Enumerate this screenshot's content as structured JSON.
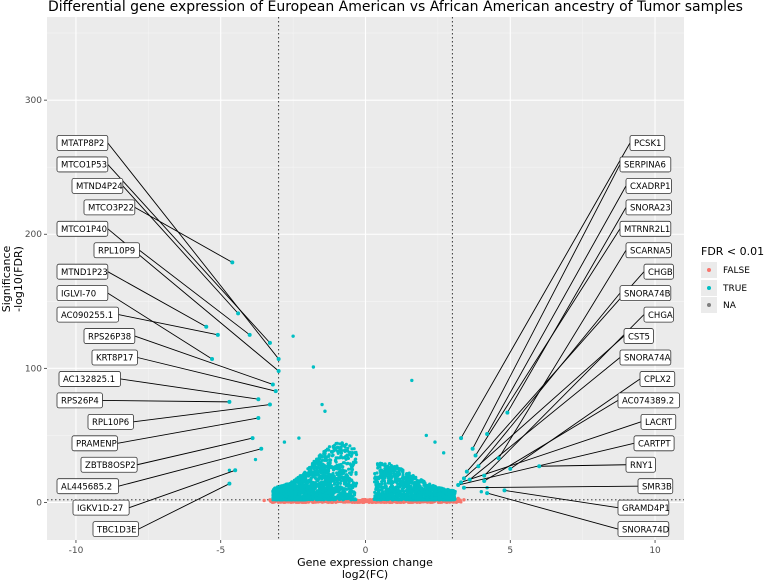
{
  "chart_data": {
    "type": "scatter",
    "title": "Differential gene expression of European American vs African American ancestry of Tumor samples",
    "xlabel": [
      "Gene expression change",
      "log2(FC)"
    ],
    "ylabel": [
      "Significance",
      "-log10(FDR)"
    ],
    "xlim": [
      -11,
      11
    ],
    "ylim": [
      -28,
      362
    ],
    "x_ticks": [
      -10,
      -5,
      0,
      5,
      10
    ],
    "y_ticks": [
      0,
      100,
      200,
      300
    ],
    "thresholds": {
      "fc_cutoffs": [
        -3,
        3
      ],
      "fdr_line": 2
    },
    "grid": true,
    "legend": {
      "title": "FDR < 0.01",
      "position": "right",
      "entries": [
        {
          "label": "FALSE",
          "color": "#f8766d"
        },
        {
          "label": "TRUE",
          "color": "#00bfc4"
        },
        {
          "label": "NA",
          "color": "#7f7f7f"
        }
      ]
    },
    "labeled_points": {
      "left": [
        {
          "label": "MTATP8P2",
          "x": -3.0,
          "y": 107
        },
        {
          "label": "MTCO1P53",
          "x": -3.3,
          "y": 119
        },
        {
          "label": "MTND4P24",
          "x": -4.4,
          "y": 141
        },
        {
          "label": "MTCO3P22",
          "x": -4.6,
          "y": 179
        },
        {
          "label": "MTCO1P40",
          "x": -3.0,
          "y": 98
        },
        {
          "label": "RPL10P9",
          "x": -4.0,
          "y": 125
        },
        {
          "label": "MTND1P23",
          "x": -5.5,
          "y": 131
        },
        {
          "label": "IGLVI-70",
          "x": -5.3,
          "y": 107
        },
        {
          "label": "AC090255.1",
          "x": -5.1,
          "y": 125
        },
        {
          "label": "RPS26P38",
          "x": -3.2,
          "y": 88
        },
        {
          "label": "KRT8P17",
          "x": -3.1,
          "y": 83
        },
        {
          "label": "AC132825.1",
          "x": -3.7,
          "y": 77
        },
        {
          "label": "RPS26P4",
          "x": -4.7,
          "y": 75
        },
        {
          "label": "RPL10P6",
          "x": -3.3,
          "y": 73
        },
        {
          "label": "PRAMENP",
          "x": -3.7,
          "y": 63
        },
        {
          "label": "ZBTB8OSP2",
          "x": -3.9,
          "y": 48
        },
        {
          "label": "AL445685.2",
          "x": -3.6,
          "y": 40
        },
        {
          "label": "IGKV1D-27",
          "x": -4.5,
          "y": 24
        },
        {
          "label": "TBC1D3E",
          "x": -4.7,
          "y": 14
        }
      ],
      "right": [
        {
          "label": "PCSK1",
          "x": 3.3,
          "y": 48
        },
        {
          "label": "SERPINA6",
          "x": 3.7,
          "y": 40
        },
        {
          "label": "CXADRP1",
          "x": 4.2,
          "y": 51
        },
        {
          "label": "SNORA23",
          "x": 4.9,
          "y": 67
        },
        {
          "label": "MTRNR2L1",
          "x": 3.8,
          "y": 35
        },
        {
          "label": "SCARNA5",
          "x": 4.6,
          "y": 33
        },
        {
          "label": "CHGB",
          "x": 3.5,
          "y": 23
        },
        {
          "label": "SNORA74B",
          "x": 3.9,
          "y": 27
        },
        {
          "label": "CHGA",
          "x": 4.1,
          "y": 20
        },
        {
          "label": "CST5",
          "x": 3.4,
          "y": 18
        },
        {
          "label": "SNORA74A",
          "x": 3.6,
          "y": 17
        },
        {
          "label": "CPLX2",
          "x": 5.0,
          "y": 25
        },
        {
          "label": "AC074389.2",
          "x": 4.1,
          "y": 16
        },
        {
          "label": "LACRT",
          "x": 3.3,
          "y": 15
        },
        {
          "label": "CARTPT",
          "x": 3.2,
          "y": 13
        },
        {
          "label": "RNY1",
          "x": 6.0,
          "y": 27
        },
        {
          "label": "SMR3B",
          "x": 3.4,
          "y": 11
        },
        {
          "label": "GRAMD4P1",
          "x": 4.8,
          "y": 9
        },
        {
          "label": "SNORA74D",
          "x": 4.2,
          "y": 7
        }
      ]
    },
    "other_points": [
      {
        "x": -2.5,
        "y": 124,
        "significant": true
      },
      {
        "x": -1.8,
        "y": 101,
        "significant": true
      },
      {
        "x": 1.6,
        "y": 91,
        "significant": true
      },
      {
        "x": -1.5,
        "y": 73,
        "significant": true
      },
      {
        "x": -1.4,
        "y": 68,
        "significant": true
      },
      {
        "x": -2.8,
        "y": 45,
        "significant": true
      },
      {
        "x": -3.6,
        "y": 40,
        "significant": true
      },
      {
        "x": -3.8,
        "y": 32,
        "significant": true
      },
      {
        "x": -4.7,
        "y": 24,
        "significant": true
      },
      {
        "x": -2.3,
        "y": 48,
        "significant": true
      },
      {
        "x": 2.1,
        "y": 50,
        "significant": true
      },
      {
        "x": 2.4,
        "y": 45,
        "significant": true
      },
      {
        "x": 2.7,
        "y": 37,
        "significant": true
      },
      {
        "x": 3.2,
        "y": 3,
        "significant": false
      },
      {
        "x": 3.4,
        "y": 2,
        "significant": false
      },
      {
        "x": -3.3,
        "y": 2,
        "significant": false
      },
      {
        "x": -3.5,
        "y": 1.5,
        "significant": false
      },
      {
        "x": 4.0,
        "y": 8,
        "significant": true
      },
      {
        "x": 4.2,
        "y": 11,
        "significant": true
      }
    ]
  }
}
